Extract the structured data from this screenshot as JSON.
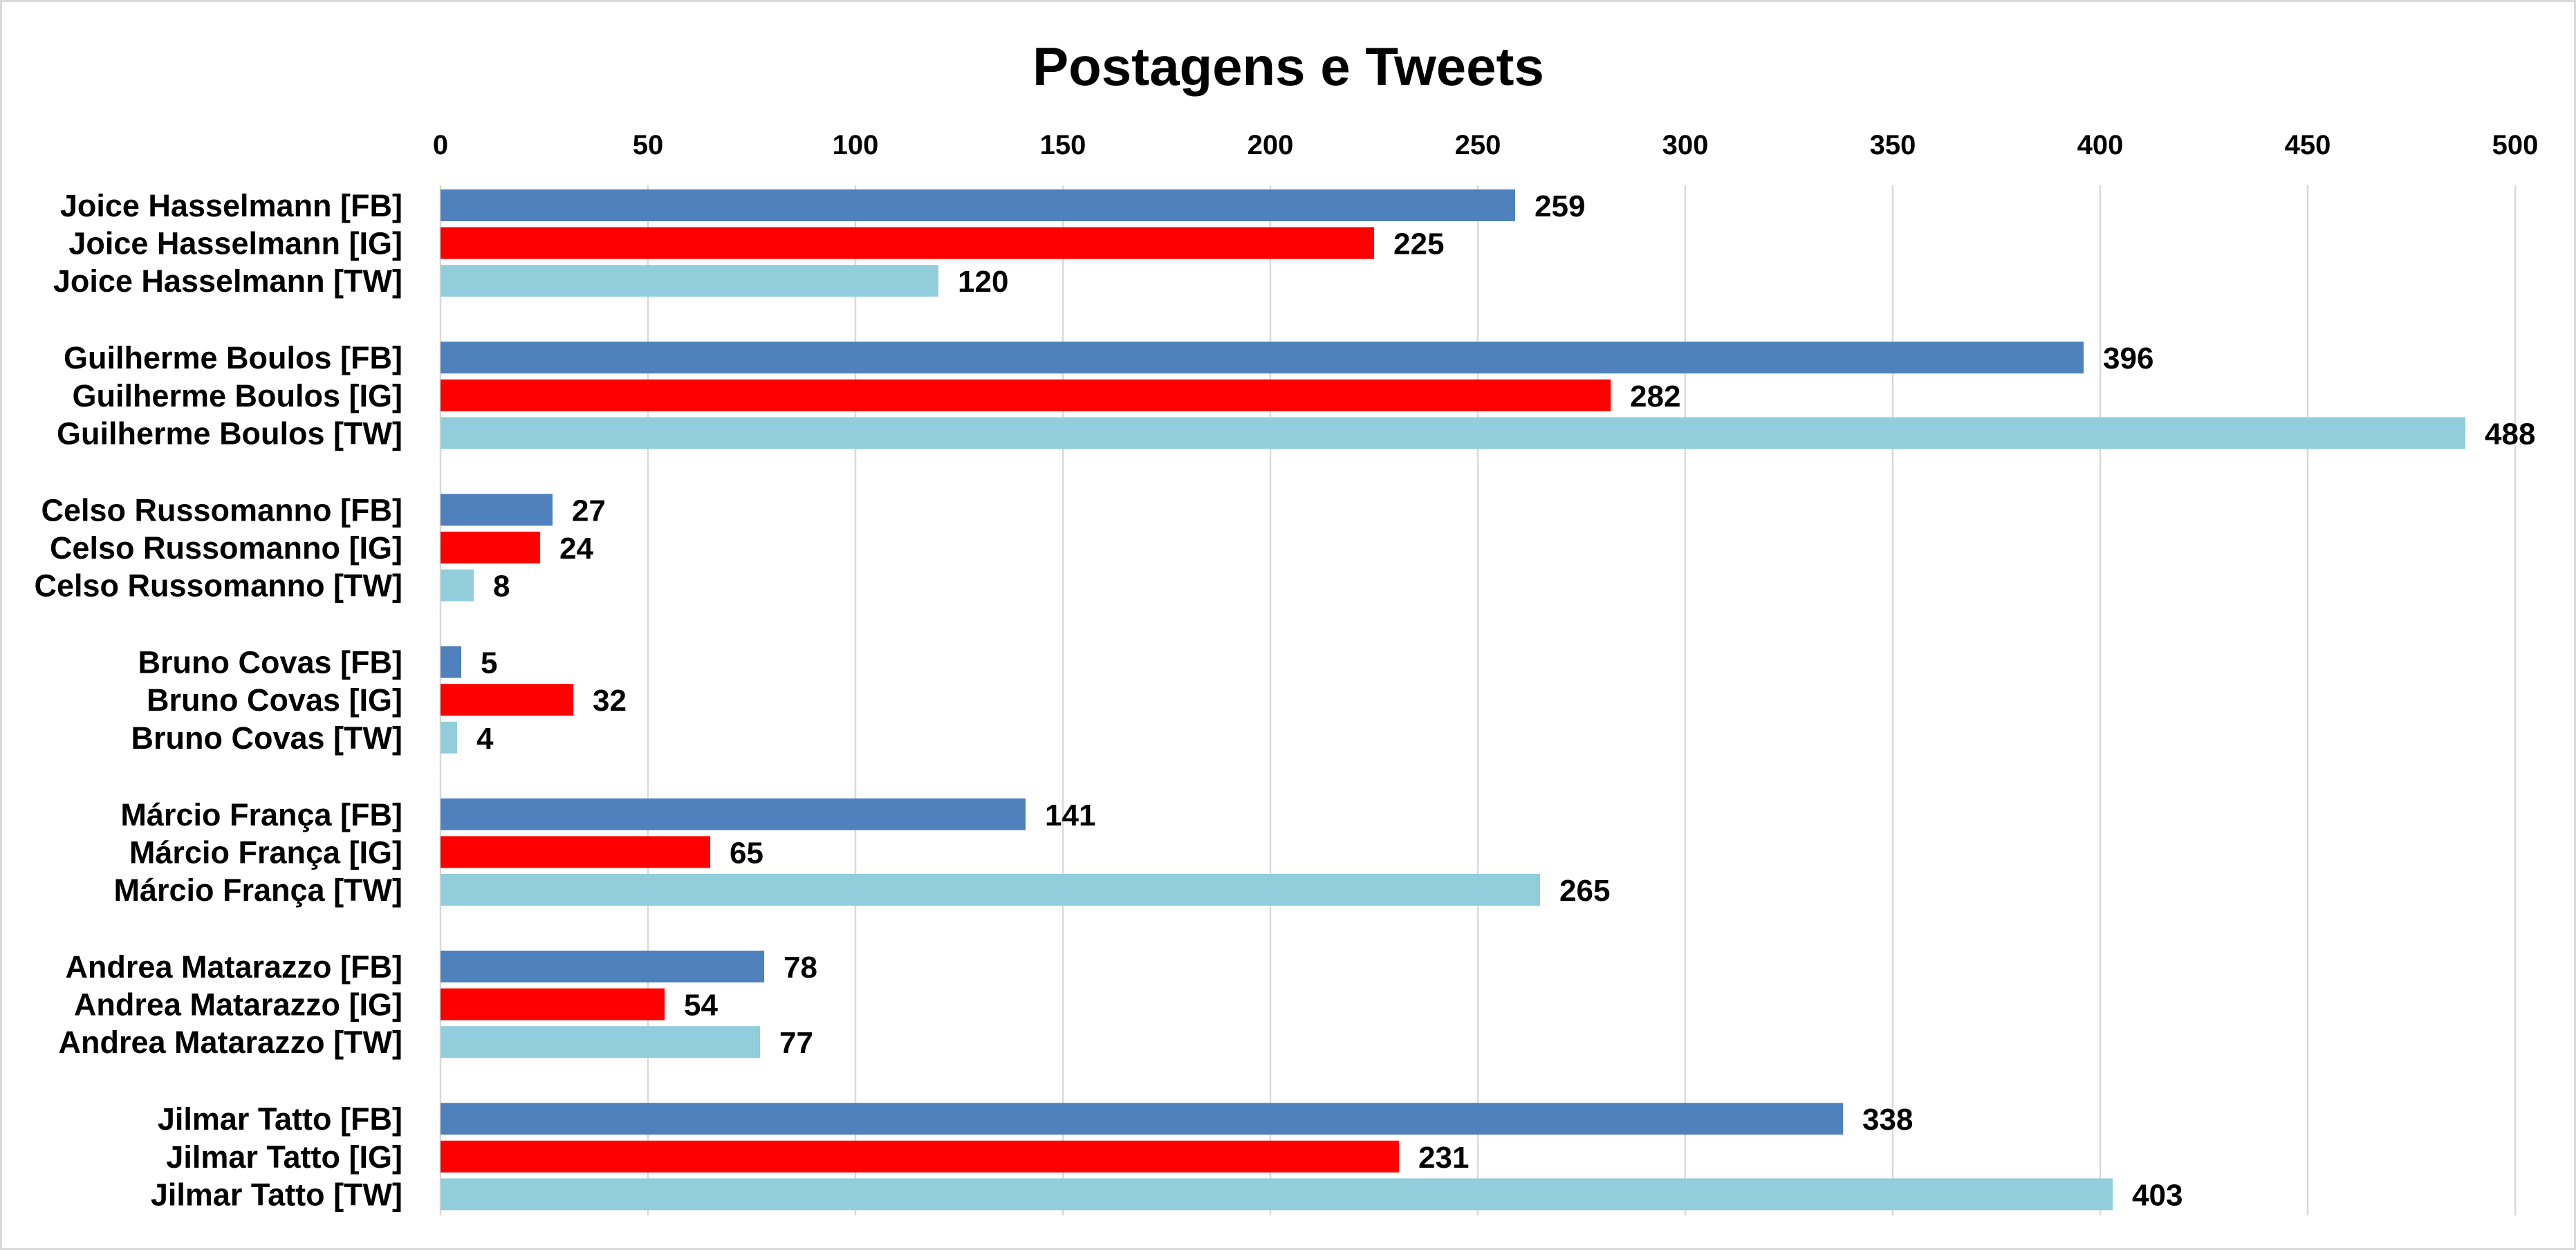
{
  "chart_data": {
    "type": "bar",
    "orientation": "horizontal",
    "title": "Postagens e Tweets",
    "categories": [
      "Joice Hasselmann [FB]",
      "Joice Hasselmann [IG]",
      "Joice Hasselmann [TW]",
      "Guilherme Boulos [FB]",
      "Guilherme Boulos [IG]",
      "Guilherme Boulos [TW]",
      "Celso Russomanno [FB]",
      "Celso Russomanno [IG]",
      "Celso Russomanno [TW]",
      "Bruno Covas [FB]",
      "Bruno Covas [IG]",
      "Bruno Covas [TW]",
      "Márcio França [FB]",
      "Márcio França [IG]",
      "Márcio França [TW]",
      "Andrea Matarazzo [FB]",
      "Andrea Matarazzo [IG]",
      "Andrea Matarazzo [TW]",
      "Jilmar Tatto [FB]",
      "Jilmar Tatto [IG]",
      "Jilmar Tatto [TW]"
    ],
    "values": [
      259,
      225,
      120,
      396,
      282,
      488,
      27,
      24,
      8,
      5,
      32,
      4,
      141,
      65,
      265,
      78,
      54,
      77,
      338,
      231,
      403
    ],
    "xlim": [
      0,
      500
    ],
    "x_ticks": [
      0,
      50,
      100,
      150,
      200,
      250,
      300,
      350,
      400,
      450,
      500
    ],
    "x_axis_position": "top",
    "grid": true,
    "data_labels": true,
    "platform_colors": {
      "[FB]": "#4F81BD",
      "[IG]": "#FF0000",
      "[TW]": "#92CDDC"
    },
    "colors": {
      "gridline": "#D9D9D9",
      "border": "#D9D9D9",
      "background": "#FFFFFF",
      "text": "#000000"
    }
  }
}
